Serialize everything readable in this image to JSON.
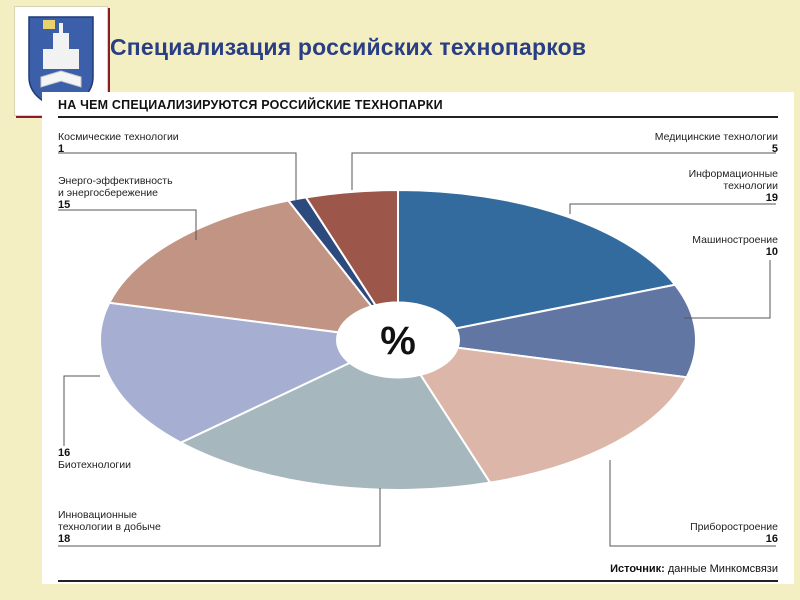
{
  "slide": {
    "title": "Специализация российских технопарков"
  },
  "chart_data": {
    "type": "pie",
    "title": "НА ЧЕМ СПЕЦИАЛИЗИРУЮТСЯ РОССИЙСКИЕ ТЕХНОПАРКИ",
    "center_label": "%",
    "slices": [
      {
        "label": "Информационные технологии",
        "value": 19,
        "color": "#346b9e"
      },
      {
        "label": "Машиностроение",
        "value": 10,
        "color": "#6276a3"
      },
      {
        "label": "Приборостроение",
        "value": 16,
        "color": "#dcb6a8"
      },
      {
        "label": "Инновационные технологии в добыче",
        "value": 18,
        "color": "#a6b7bd"
      },
      {
        "label": "Биотехнологии",
        "value": 16,
        "color": "#a6afd2"
      },
      {
        "label": "Энерго-эффективность и энергосбережение",
        "value": 15,
        "color": "#c19484"
      },
      {
        "label": "Космические технологии",
        "value": 1,
        "color": "#2d4a7f"
      },
      {
        "label": "Медицинские технологии",
        "value": 5,
        "color": "#9d574a"
      }
    ],
    "source_prefix": "Источник:",
    "source_text": " данные Минкомсвязи"
  }
}
